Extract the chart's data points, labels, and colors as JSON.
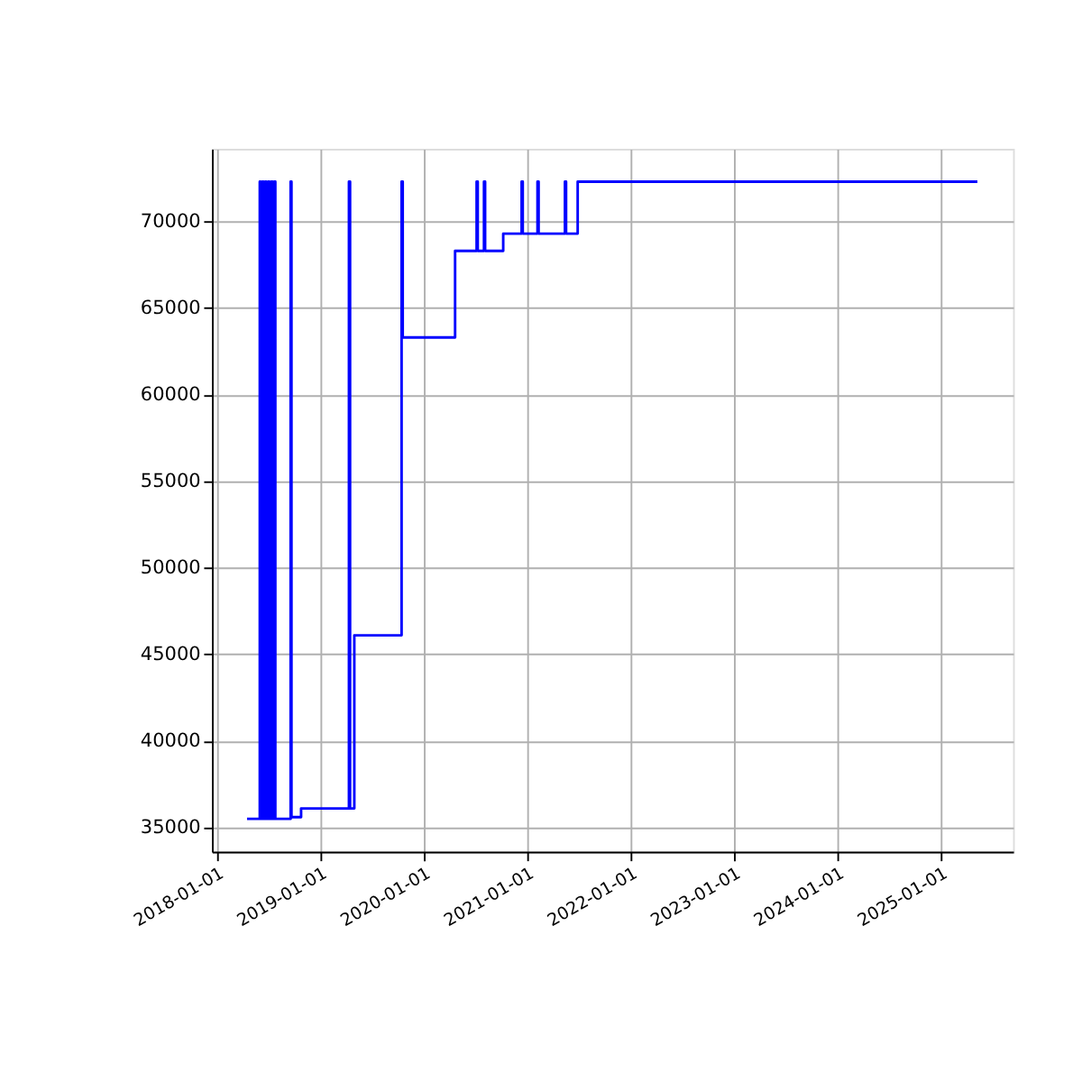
{
  "chart_data": {
    "type": "step",
    "xlim": [
      "2017-12-14",
      "2025-09-13"
    ],
    "ylim": [
      33600,
      74200
    ],
    "xticks": [
      "2018-01-01",
      "2019-01-01",
      "2020-01-01",
      "2021-01-01",
      "2022-01-01",
      "2023-01-01",
      "2024-01-01",
      "2025-01-01"
    ],
    "yticks": [
      35000,
      40000,
      45000,
      50000,
      55000,
      60000,
      65000,
      70000
    ],
    "grid": true,
    "line_style": "solid",
    "marker": "none",
    "x": [
      "2018-04-17",
      "2018-06-01",
      "2018-06-04",
      "2018-06-10",
      "2018-06-14",
      "2018-06-20",
      "2018-06-24",
      "2018-07-01",
      "2018-07-05",
      "2018-07-12",
      "2018-07-16",
      "2018-07-22",
      "2018-07-26",
      "2018-09-18",
      "2018-09-21",
      "2018-10-25",
      "2019-04-12",
      "2019-04-16",
      "2019-05-01",
      "2019-10-15",
      "2019-10-19",
      "2020-04-21",
      "2020-07-06",
      "2020-07-10",
      "2020-08-01",
      "2020-08-05",
      "2020-10-08",
      "2020-12-12",
      "2020-12-16",
      "2021-02-06",
      "2021-02-10",
      "2021-05-14",
      "2021-05-18",
      "2021-06-28",
      "2025-05-10"
    ],
    "series": [
      {
        "color": "#0000ff",
        "values": [
          35500,
          72300,
          35500,
          72300,
          35500,
          72300,
          35500,
          72300,
          35500,
          72300,
          35500,
          72300,
          35500,
          72300,
          35600,
          36100,
          72300,
          36100,
          46100,
          72300,
          63300,
          68300,
          72300,
          68300,
          72300,
          68300,
          69300,
          72300,
          69300,
          72300,
          69300,
          72300,
          69300,
          72300,
          72300
        ]
      }
    ]
  }
}
